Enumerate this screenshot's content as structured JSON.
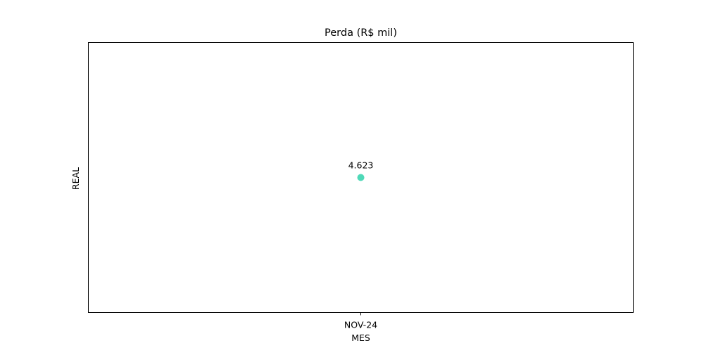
{
  "chart_data": {
    "type": "scatter",
    "title": "Perda (R$ mil)",
    "xlabel": "MES",
    "ylabel": "REAL",
    "categories": [
      "NOV-24"
    ],
    "series": [
      {
        "values": [
          4.623
        ],
        "data_labels": [
          "4.623"
        ],
        "color": "#4fd9b8"
      }
    ],
    "grid": false,
    "legend": "none",
    "y_ticks_shown": false
  }
}
